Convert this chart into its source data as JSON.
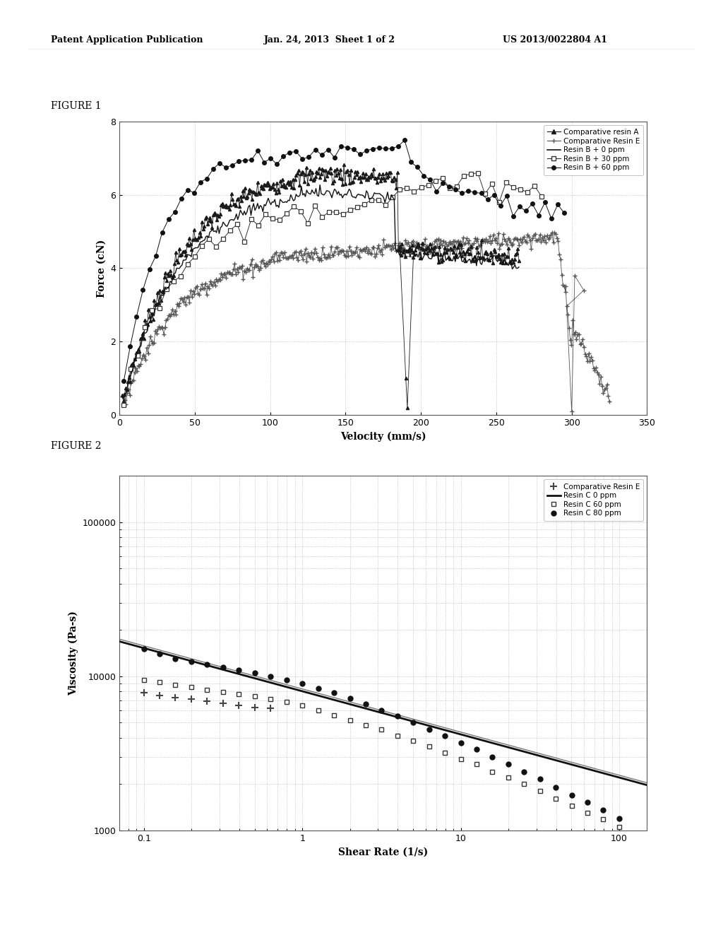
{
  "header_left": "Patent Application Publication",
  "header_mid": "Jan. 24, 2013  Sheet 1 of 2",
  "header_right": "US 2013/0022804 A1",
  "fig1_label": "FIGURE 1",
  "fig2_label": "FIGURE 2",
  "fig1": {
    "xlabel": "Velocity (mm/s)",
    "ylabel": "Force (cN)",
    "xlim": [
      0,
      350
    ],
    "ylim": [
      0,
      8
    ],
    "xticks": [
      0,
      50,
      100,
      150,
      200,
      250,
      300,
      350
    ],
    "yticks": [
      0,
      2,
      4,
      6,
      8
    ]
  },
  "fig2": {
    "xlabel": "Shear Rate (1/s)",
    "ylabel": "Viscosity (Pa-s)",
    "xlim": [
      0.07,
      150
    ],
    "ylim": [
      1000,
      200000
    ]
  },
  "bg_color": "#ffffff"
}
